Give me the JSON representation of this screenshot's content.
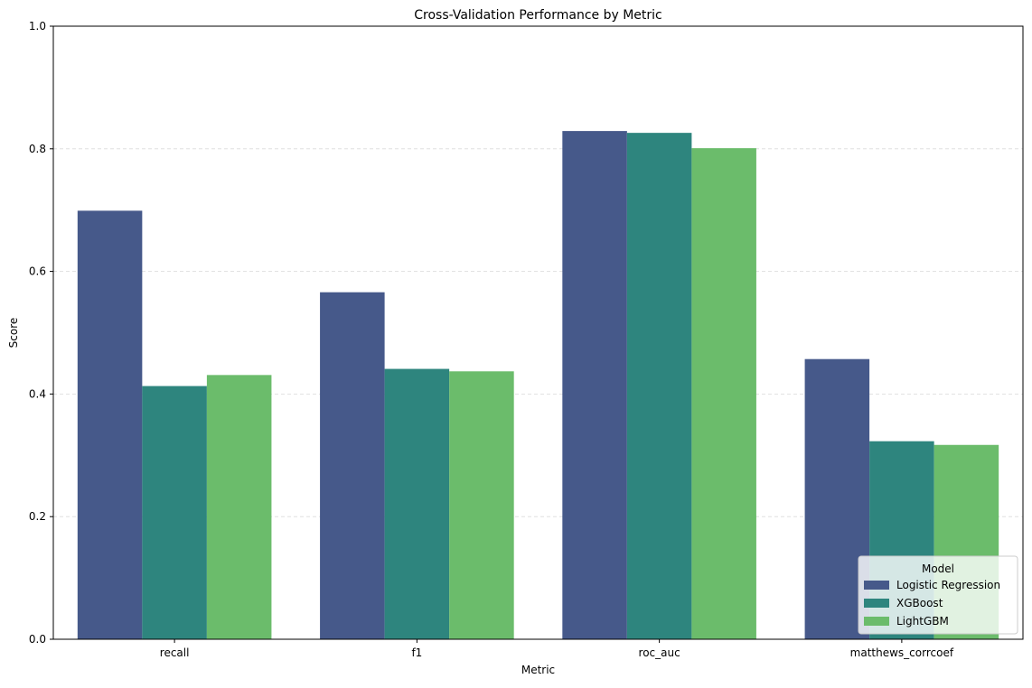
{
  "chart_data": {
    "type": "bar",
    "title": "Cross-Validation Performance by Metric",
    "xlabel": "Metric",
    "ylabel": "Score",
    "ylim": [
      0,
      1.0
    ],
    "yticks": [
      "0.0",
      "0.2",
      "0.4",
      "0.6",
      "0.8",
      "1.0"
    ],
    "ytick_values": [
      0,
      0.2,
      0.4,
      0.6,
      0.8,
      1.0
    ],
    "grid": "horizontal dashed",
    "categories": [
      "recall",
      "f1",
      "roc_auc",
      "matthews_corrcoef"
    ],
    "series": [
      {
        "name": "Logistic Regression",
        "color": "#46598a",
        "values": [
          0.699,
          0.566,
          0.829,
          0.457
        ]
      },
      {
        "name": "XGBoost",
        "color": "#2e857e",
        "values": [
          0.413,
          0.441,
          0.826,
          0.323
        ]
      },
      {
        "name": "LightGBM",
        "color": "#6bbc6b",
        "values": [
          0.431,
          0.437,
          0.801,
          0.317
        ]
      }
    ],
    "legend": {
      "title": "Model",
      "placement": "lower-right"
    }
  }
}
